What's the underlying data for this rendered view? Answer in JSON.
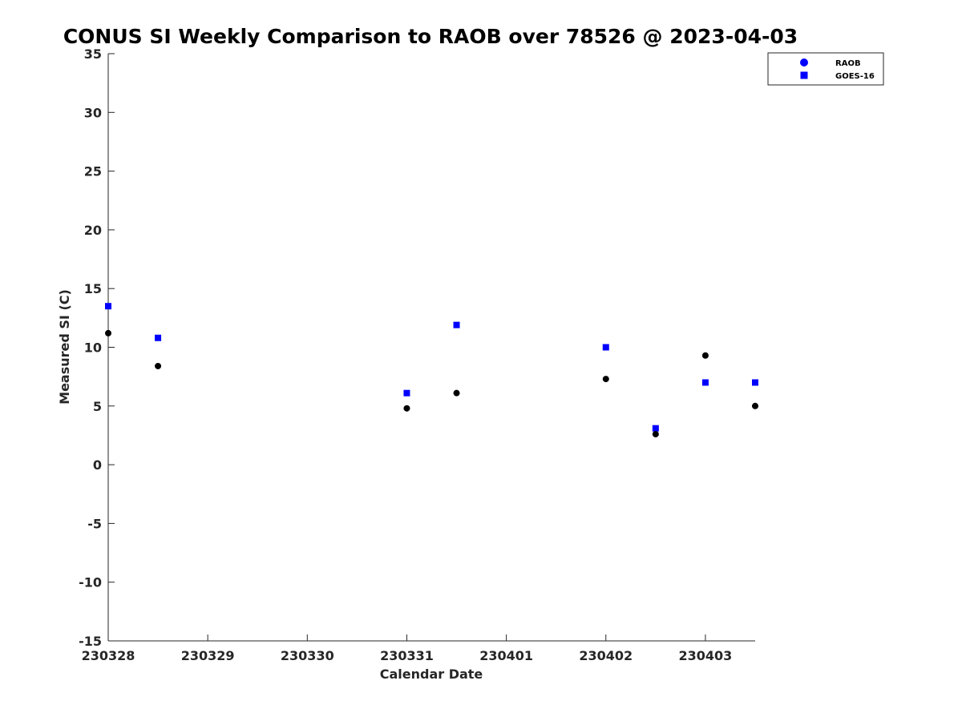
{
  "chart_data": {
    "type": "scatter",
    "title": "CONUS SI Weekly Comparison to RAOB over 78526 @ 2023-04-03",
    "xlabel": "Calendar Date",
    "ylabel": "Measured SI (C)",
    "xlim": [
      0,
      6.5
    ],
    "ylim": [
      -15,
      35
    ],
    "xticks": [
      {
        "value": 0,
        "label": "230328"
      },
      {
        "value": 1,
        "label": "230329"
      },
      {
        "value": 2,
        "label": "230330"
      },
      {
        "value": 3,
        "label": "230331"
      },
      {
        "value": 4,
        "label": "230401"
      },
      {
        "value": 5,
        "label": "230402"
      },
      {
        "value": 6,
        "label": "230403"
      }
    ],
    "yticks": [
      35,
      30,
      25,
      20,
      15,
      10,
      5,
      0,
      -5,
      -10,
      -15
    ],
    "legend_position": "top-right",
    "series": [
      {
        "name": "RAOB",
        "marker": "circle",
        "color": "#000000",
        "legend_color": "#0000ff",
        "points": [
          {
            "x": 0.0,
            "y": 11.2
          },
          {
            "x": 0.5,
            "y": 8.4
          },
          {
            "x": 3.0,
            "y": 4.8
          },
          {
            "x": 3.5,
            "y": 6.1
          },
          {
            "x": 5.0,
            "y": 7.3
          },
          {
            "x": 5.5,
            "y": 2.6
          },
          {
            "x": 6.0,
            "y": 9.3
          },
          {
            "x": 6.5,
            "y": 5.0
          }
        ]
      },
      {
        "name": "GOES-16",
        "marker": "square",
        "color": "#0000ff",
        "legend_color": "#0000ff",
        "points": [
          {
            "x": 0.0,
            "y": 13.5
          },
          {
            "x": 0.5,
            "y": 10.8
          },
          {
            "x": 3.0,
            "y": 6.1
          },
          {
            "x": 3.5,
            "y": 11.9
          },
          {
            "x": 5.0,
            "y": 10.0
          },
          {
            "x": 5.5,
            "y": 3.1
          },
          {
            "x": 6.0,
            "y": 7.0
          },
          {
            "x": 6.5,
            "y": 7.0
          }
        ]
      }
    ]
  }
}
